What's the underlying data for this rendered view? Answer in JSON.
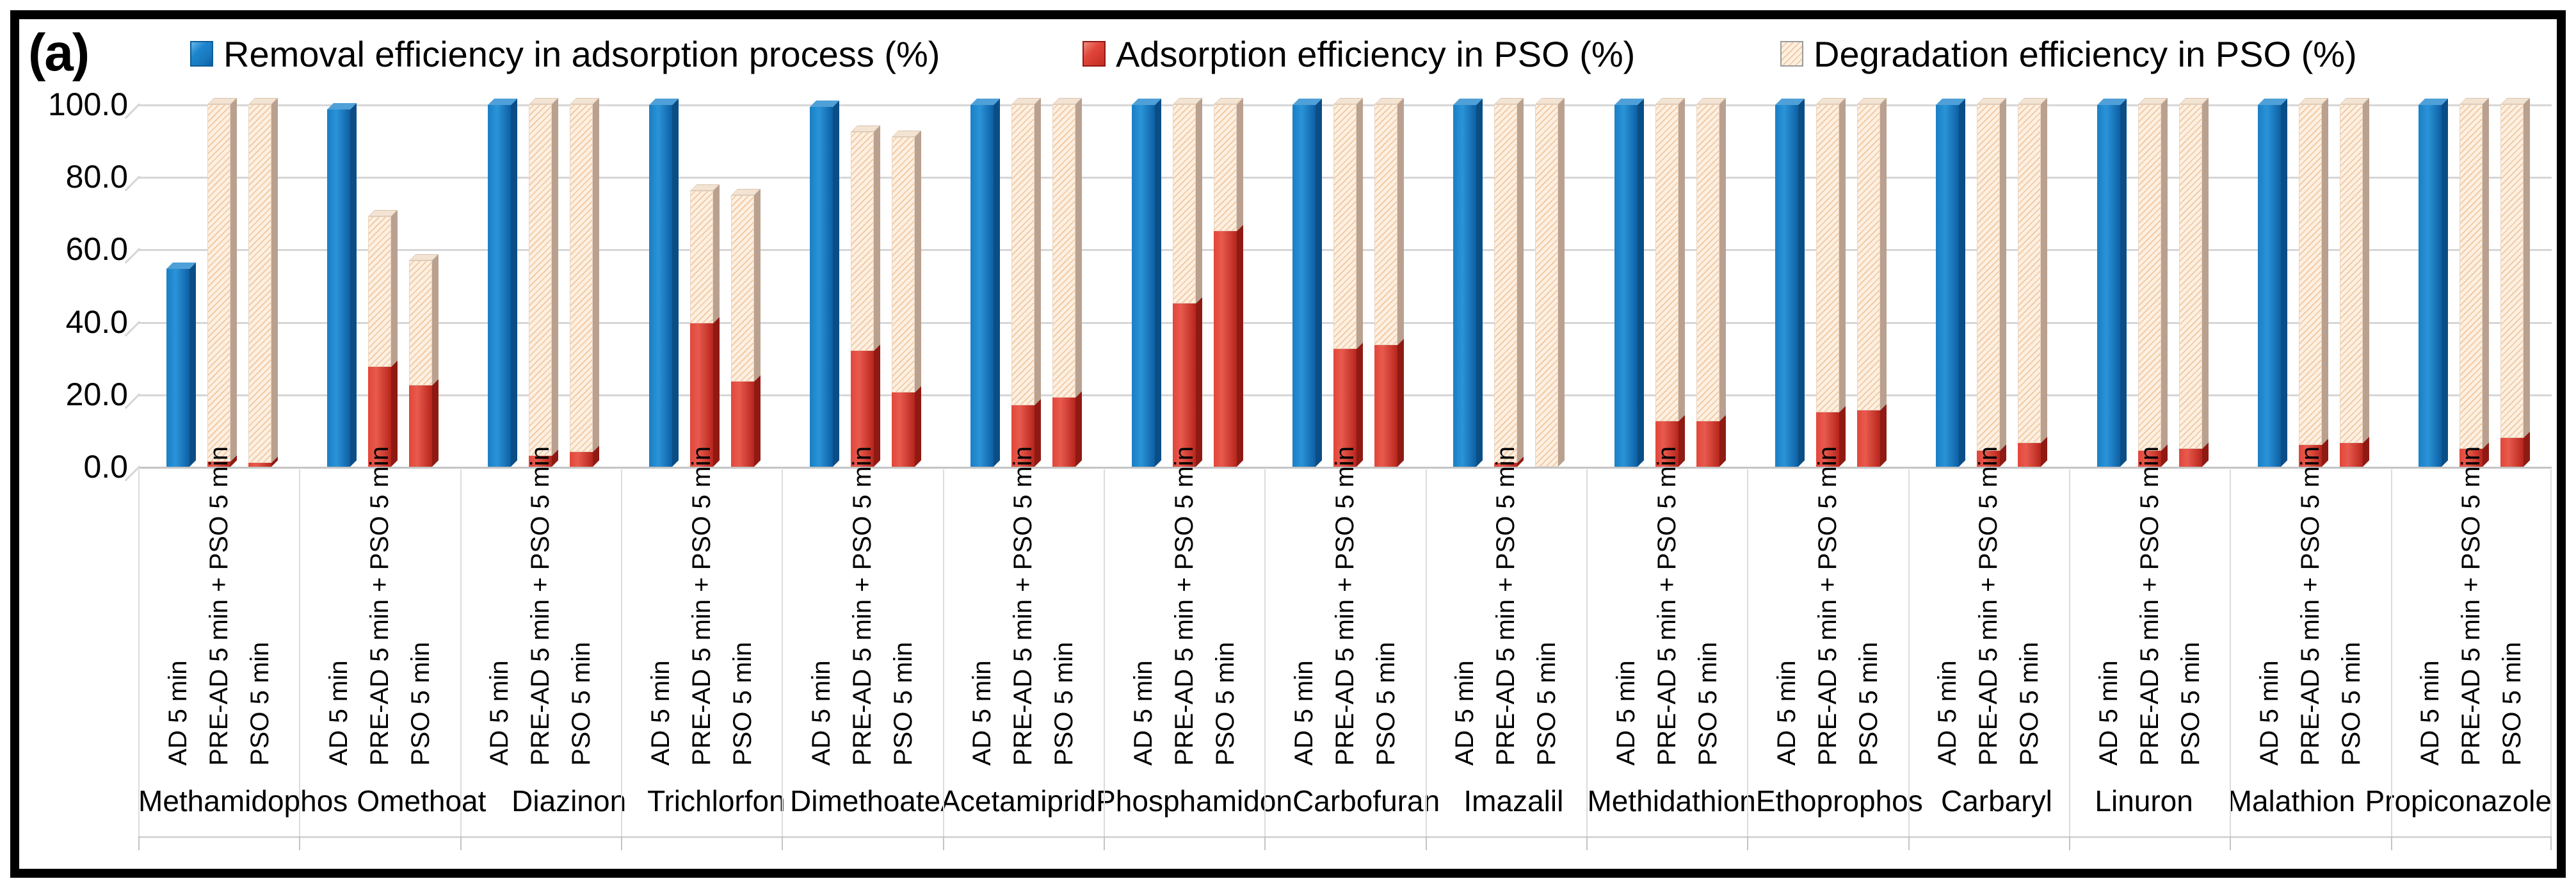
{
  "panel_label": "(a)",
  "legend": [
    {
      "label": "Removal efficiency in adsorption process (%)",
      "color": "#1878BE",
      "swatch": "solid-blue"
    },
    {
      "label": "Adsorption efficiency in PSO (%)",
      "color": "#DD3A2E",
      "swatch": "solid-red"
    },
    {
      "label": "Degradation efficiency in PSO (%)",
      "color": "#FBE9DA",
      "swatch": "hatched-peach"
    }
  ],
  "y_axis": {
    "ticks": [
      "100.0",
      "80.0",
      "60.0",
      "40.0",
      "20.0",
      "0.0"
    ],
    "min": 0,
    "max": 100
  },
  "chart_data": {
    "type": "bar",
    "title": "(a)",
    "xlabel": "",
    "ylabel": "",
    "ylim": [
      0,
      100
    ],
    "y_ticks": [
      100.0,
      80.0,
      60.0,
      40.0,
      20.0,
      0.0
    ],
    "grid": true,
    "legend_position": "top",
    "legend": [
      "Removal efficiency in adsorption process (%)",
      "Adsorption efficiency in PSO (%)",
      "Degradation efficiency in PSO (%)"
    ],
    "bar_labels": [
      "AD 5 min",
      "PRE-AD 5 min + PSO 5 min",
      "PSO 5 min"
    ],
    "categories": [
      "Methamidophos",
      "Omethoat",
      "Diazinon",
      "Trichlorfon",
      "Dimethoate",
      "Acetamiprid",
      "Phosphamidon",
      "Carbofuran",
      "Imazalil",
      "Methidathion",
      "Ethoprophos",
      "Carbaryl",
      "Linuron",
      "Malathion",
      "Propiconazole"
    ],
    "groups": [
      {
        "category": "Methamidophos",
        "removal_ad_5min": 54.6,
        "pre_ad_pso": {
          "adsorption": 1.5,
          "degradation": 98.5
        },
        "pso": {
          "adsorption": 1.0,
          "degradation": 99.0
        }
      },
      {
        "category": "Omethoat",
        "removal_ad_5min": 98.6,
        "pre_ad_pso": {
          "adsorption": 27.5,
          "degradation": 41.5
        },
        "pso": {
          "adsorption": 22.5,
          "degradation": 34.5
        }
      },
      {
        "category": "Diazinon",
        "removal_ad_5min": 99.8,
        "pre_ad_pso": {
          "adsorption": 3.0,
          "degradation": 97.0
        },
        "pso": {
          "adsorption": 4.0,
          "degradation": 96.0
        }
      },
      {
        "category": "Trichlorfon",
        "removal_ad_5min": 99.8,
        "pre_ad_pso": {
          "adsorption": 39.5,
          "degradation": 36.5
        },
        "pso": {
          "adsorption": 23.5,
          "degradation": 51.5
        }
      },
      {
        "category": "Dimethoate",
        "removal_ad_5min": 99.3,
        "pre_ad_pso": {
          "adsorption": 32.0,
          "degradation": 60.5
        },
        "pso": {
          "adsorption": 20.5,
          "degradation": 70.5
        }
      },
      {
        "category": "Acetamiprid",
        "removal_ad_5min": 99.8,
        "pre_ad_pso": {
          "adsorption": 17.0,
          "degradation": 83.0
        },
        "pso": {
          "adsorption": 19.0,
          "degradation": 81.0
        }
      },
      {
        "category": "Phosphamidon",
        "removal_ad_5min": 99.8,
        "pre_ad_pso": {
          "adsorption": 45.0,
          "degradation": 55.0
        },
        "pso": {
          "adsorption": 65.0,
          "degradation": 35.0
        }
      },
      {
        "category": "Carbofuran",
        "removal_ad_5min": 99.8,
        "pre_ad_pso": {
          "adsorption": 32.5,
          "degradation": 67.5
        },
        "pso": {
          "adsorption": 33.5,
          "degradation": 66.5
        }
      },
      {
        "category": "Imazalil",
        "removal_ad_5min": 99.8,
        "pre_ad_pso": {
          "adsorption": 1.0,
          "degradation": 99.0
        },
        "pso": {
          "adsorption": 0.0,
          "degradation": 100.0
        }
      },
      {
        "category": "Methidathion",
        "removal_ad_5min": 99.8,
        "pre_ad_pso": {
          "adsorption": 12.5,
          "degradation": 87.5
        },
        "pso": {
          "adsorption": 12.5,
          "degradation": 87.5
        }
      },
      {
        "category": "Ethoprophos",
        "removal_ad_5min": 99.8,
        "pre_ad_pso": {
          "adsorption": 15.0,
          "degradation": 85.0
        },
        "pso": {
          "adsorption": 15.5,
          "degradation": 84.5
        }
      },
      {
        "category": "Carbaryl",
        "removal_ad_5min": 99.8,
        "pre_ad_pso": {
          "adsorption": 4.5,
          "degradation": 95.5
        },
        "pso": {
          "adsorption": 6.5,
          "degradation": 93.5
        }
      },
      {
        "category": "Linuron",
        "removal_ad_5min": 99.8,
        "pre_ad_pso": {
          "adsorption": 4.5,
          "degradation": 95.5
        },
        "pso": {
          "adsorption": 5.0,
          "degradation": 95.0
        }
      },
      {
        "category": "Malathion",
        "removal_ad_5min": 99.8,
        "pre_ad_pso": {
          "adsorption": 6.0,
          "degradation": 94.0
        },
        "pso": {
          "adsorption": 6.5,
          "degradation": 93.5
        }
      },
      {
        "category": "Propiconazole",
        "removal_ad_5min": 99.8,
        "pre_ad_pso": {
          "adsorption": 5.0,
          "degradation": 95.0
        },
        "pso": {
          "adsorption": 8.0,
          "degradation": 92.0
        }
      }
    ]
  }
}
